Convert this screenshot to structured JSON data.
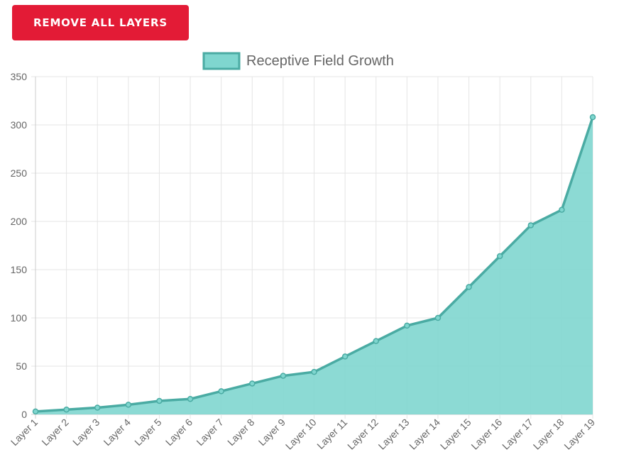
{
  "toolbar": {
    "remove_label": "REMOVE ALL LAYERS"
  },
  "colors": {
    "button": "#e31b36",
    "line": "#4aaba3",
    "fill": "#7fd6cf"
  },
  "chart_data": {
    "type": "area",
    "legend": "Receptive Field Growth",
    "legend_position": "top-center",
    "grid": true,
    "ylim": [
      0,
      350
    ],
    "yticks": [
      "0",
      "50",
      "100",
      "150",
      "200",
      "250",
      "300",
      "350"
    ],
    "categories": [
      "Layer 1",
      "Layer 2",
      "Layer 3",
      "Layer 4",
      "Layer 5",
      "Layer 6",
      "Layer 7",
      "Layer 8",
      "Layer 9",
      "Layer 10",
      "Layer 11",
      "Layer 12",
      "Layer 13",
      "Layer 14",
      "Layer 15",
      "Layer 16",
      "Layer 17",
      "Layer 18",
      "Layer 19"
    ],
    "series": [
      {
        "name": "Receptive Field Growth",
        "values": [
          3,
          5,
          7,
          10,
          14,
          16,
          24,
          32,
          40,
          44,
          60,
          76,
          92,
          100,
          132,
          164,
          196,
          212,
          308
        ]
      }
    ]
  }
}
